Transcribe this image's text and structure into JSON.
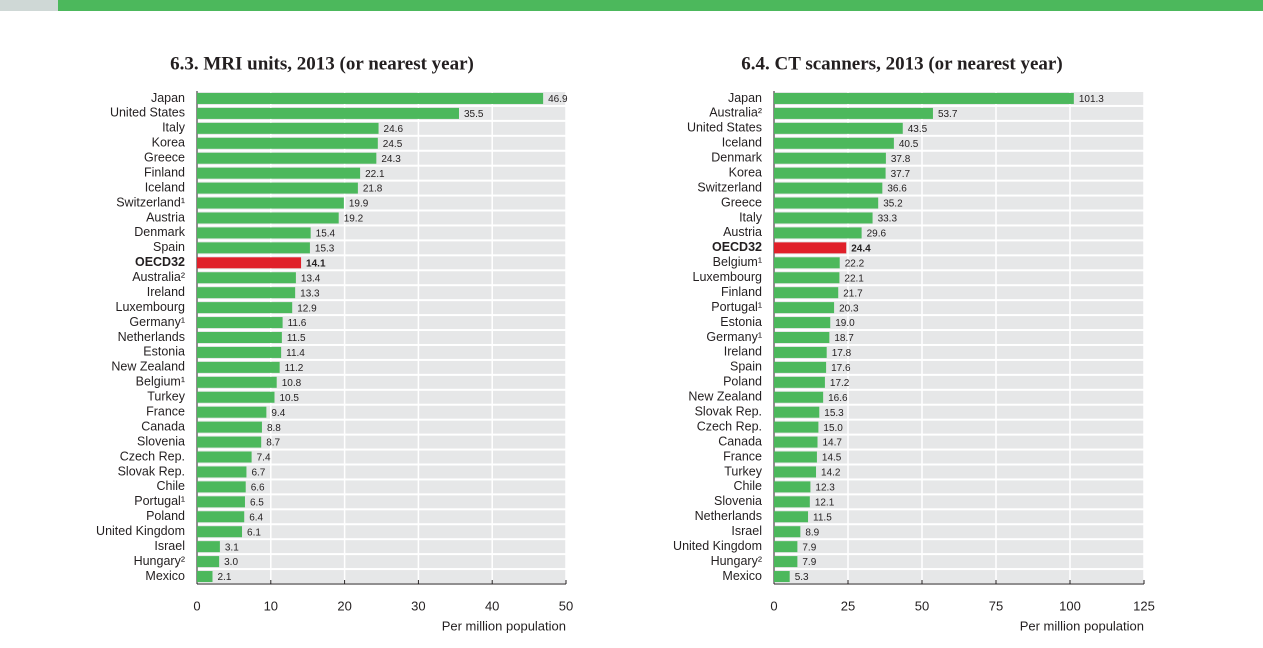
{
  "chart_data": [
    {
      "type": "bar",
      "title": "6.3. MRI units, 2013 (or nearest year)",
      "x_label": "Per million population",
      "categories": [
        "Japan",
        "United States",
        "Italy",
        "Korea",
        "Greece",
        "Finland",
        "Iceland",
        "Switzerland¹",
        "Austria",
        "Denmark",
        "Spain",
        "OECD32",
        "Australia²",
        "Ireland",
        "Luxembourg",
        "Germany¹",
        "Netherlands",
        "Estonia",
        "New Zealand",
        "Belgium¹",
        "Turkey",
        "France",
        "Canada",
        "Slovenia",
        "Czech Rep.",
        "Slovak Rep.",
        "Chile",
        "Portugal¹",
        "Poland",
        "United Kingdom",
        "Israel",
        "Hungary²",
        "Mexico"
      ],
      "values": [
        46.9,
        35.5,
        24.6,
        24.5,
        24.3,
        22.1,
        21.8,
        19.9,
        19.2,
        15.4,
        15.3,
        14.1,
        13.4,
        13.3,
        12.9,
        11.6,
        11.5,
        11.4,
        11.2,
        10.8,
        10.5,
        9.4,
        8.8,
        8.7,
        7.4,
        6.7,
        6.6,
        6.5,
        6.4,
        6.1,
        3.1,
        3.0,
        2.1
      ],
      "value_labels": [
        "46.9",
        "35.5",
        "24.6",
        "24.5",
        "24.3",
        "22.1",
        "21.8",
        "19.9",
        "19.2",
        "15.4",
        "15.3",
        "14.1",
        "13.4",
        "13.3",
        "12.9",
        "11.6",
        "11.5",
        "11.4",
        "11.2",
        "10.8",
        "10.5",
        "9.4",
        "8.8",
        "8.7",
        "7.4",
        "6.7",
        "6.6",
        "6.5",
        "6.4",
        "6.1",
        "3.1",
        "3.0",
        "2.1"
      ],
      "color": "#4cb85c",
      "colors": [
        "#4cb85c",
        "#4cb85c",
        "#4cb85c",
        "#4cb85c",
        "#4cb85c",
        "#4cb85c",
        "#4cb85c",
        "#4cb85c",
        "#4cb85c",
        "#4cb85c",
        "#4cb85c",
        "#e0202a",
        "#4cb85c",
        "#4cb85c",
        "#4cb85c",
        "#4cb85c",
        "#4cb85c",
        "#4cb85c",
        "#4cb85c",
        "#4cb85c",
        "#4cb85c",
        "#4cb85c",
        "#4cb85c",
        "#4cb85c",
        "#4cb85c",
        "#4cb85c",
        "#4cb85c",
        "#4cb85c",
        "#4cb85c",
        "#4cb85c",
        "#4cb85c",
        "#4cb85c",
        "#4cb85c"
      ],
      "xlim": [
        0,
        50
      ],
      "xticks": [
        0,
        10,
        20,
        30,
        40,
        50
      ],
      "grid": true
    },
    {
      "type": "bar",
      "title": "6.4. CT scanners, 2013 (or nearest year)",
      "x_label": "Per million population",
      "categories": [
        "Japan",
        "Australia²",
        "United States",
        "Iceland",
        "Denmark",
        "Korea",
        "Switzerland",
        "Greece",
        "Italy",
        "Austria",
        "OECD32",
        "Belgium¹",
        "Luxembourg",
        "Finland",
        "Portugal¹",
        "Estonia",
        "Germany¹",
        "Ireland",
        "Spain",
        "Poland",
        "New Zealand",
        "Slovak Rep.",
        "Czech Rep.",
        "Canada",
        "France",
        "Turkey",
        "Chile",
        "Slovenia",
        "Netherlands",
        "Israel",
        "United Kingdom",
        "Hungary²",
        "Mexico"
      ],
      "values": [
        101.3,
        53.7,
        43.5,
        40.5,
        37.8,
        37.7,
        36.6,
        35.2,
        33.3,
        29.6,
        24.4,
        22.2,
        22.1,
        21.7,
        20.3,
        19.0,
        18.7,
        17.8,
        17.6,
        17.2,
        16.6,
        15.3,
        15.0,
        14.7,
        14.5,
        14.2,
        12.3,
        12.1,
        11.5,
        8.9,
        7.9,
        7.9,
        5.3
      ],
      "value_labels": [
        "101.3",
        "53.7",
        "43.5",
        "40.5",
        "37.8",
        "37.7",
        "36.6",
        "35.2",
        "33.3",
        "29.6",
        "24.4",
        "22.2",
        "22.1",
        "21.7",
        "20.3",
        "19.0",
        "18.7",
        "17.8",
        "17.6",
        "17.2",
        "16.6",
        "15.3",
        "15.0",
        "14.7",
        "14.5",
        "14.2",
        "12.3",
        "12.1",
        "11.5",
        "8.9",
        "7.9",
        "7.9",
        "5.3"
      ],
      "color": "#4cb85c",
      "colors": [
        "#4cb85c",
        "#4cb85c",
        "#4cb85c",
        "#4cb85c",
        "#4cb85c",
        "#4cb85c",
        "#4cb85c",
        "#4cb85c",
        "#4cb85c",
        "#4cb85c",
        "#e0202a",
        "#4cb85c",
        "#4cb85c",
        "#4cb85c",
        "#4cb85c",
        "#4cb85c",
        "#4cb85c",
        "#4cb85c",
        "#4cb85c",
        "#4cb85c",
        "#4cb85c",
        "#4cb85c",
        "#4cb85c",
        "#4cb85c",
        "#4cb85c",
        "#4cb85c",
        "#4cb85c",
        "#4cb85c",
        "#4cb85c",
        "#4cb85c",
        "#4cb85c",
        "#4cb85c",
        "#4cb85c"
      ],
      "xlim": [
        0,
        125
      ],
      "xticks": [
        0,
        25,
        50,
        75,
        100,
        125
      ],
      "grid": true
    }
  ]
}
